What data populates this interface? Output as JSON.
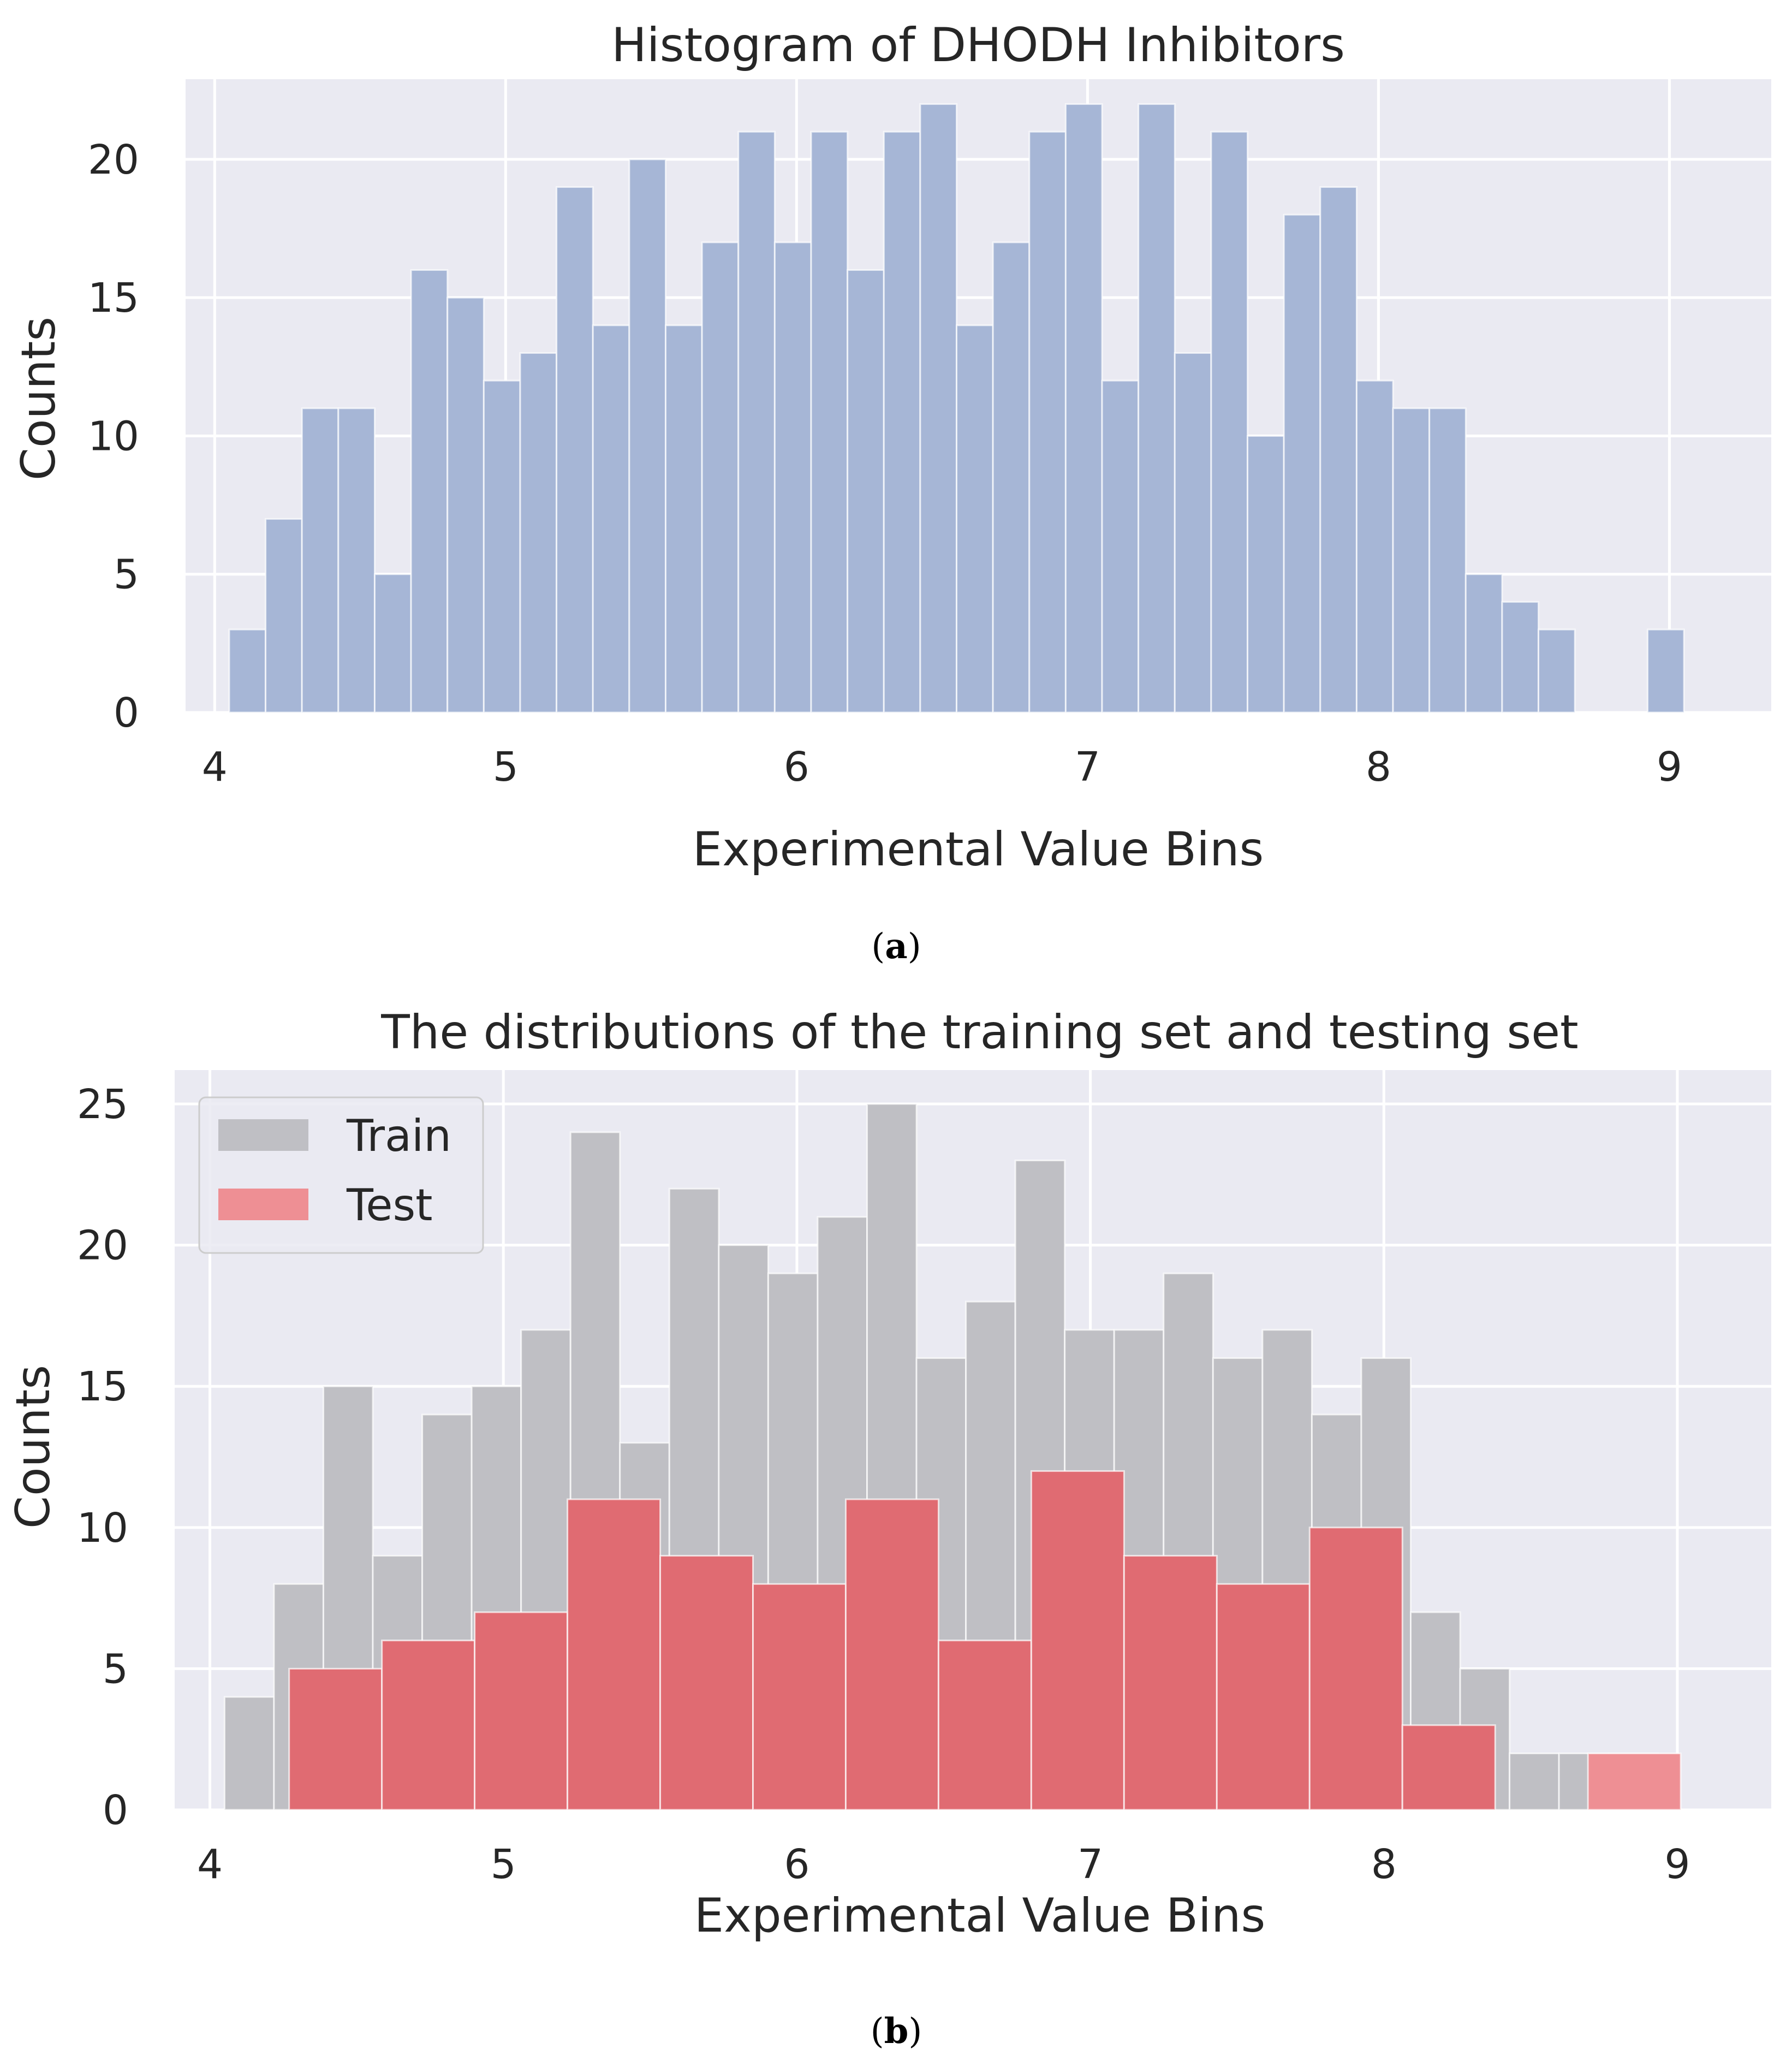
{
  "colors": {
    "background": "#eaeaf2",
    "grid": "#ffffff",
    "histogram": "#a6b6d6",
    "train": "#bfbfc4",
    "test": "#e06b72",
    "test_last": "#ee8f94",
    "text": "#262626"
  },
  "chart_data": [
    {
      "type": "bar",
      "panel": "a",
      "title": "Histogram of DHODH Inhibitors",
      "xlabel": "Experimental Value Bins",
      "ylabel": "Counts",
      "xlim": [
        3.9,
        9.35
      ],
      "ylim": [
        0,
        22.9
      ],
      "xticks": [
        4,
        5,
        6,
        7,
        8,
        9
      ],
      "yticks": [
        0,
        5,
        10,
        15,
        20
      ],
      "grid": true,
      "series": [
        {
          "name": "DHODH Inhibitors",
          "bin_start": 4.05,
          "bin_width": 0.125,
          "values": [
            3,
            7,
            11,
            11,
            5,
            16,
            15,
            12,
            13,
            19,
            14,
            20,
            14,
            17,
            21,
            17,
            21,
            16,
            21,
            22,
            14,
            17,
            21,
            22,
            12,
            22,
            13,
            21,
            10,
            18,
            19,
            12,
            11,
            11,
            5,
            4,
            3,
            0,
            0,
            3
          ]
        }
      ],
      "caption": "a"
    },
    {
      "type": "bar",
      "panel": "b",
      "title": "The distributions of the training set and testing set",
      "xlabel": "Experimental Value Bins",
      "ylabel": "Counts",
      "xlim": [
        3.88,
        9.32
      ],
      "ylim": [
        0,
        26.2
      ],
      "xticks": [
        4,
        5,
        6,
        7,
        8,
        9
      ],
      "yticks": [
        0,
        5,
        10,
        15,
        20,
        25
      ],
      "grid": true,
      "legend_position": "top-left",
      "series": [
        {
          "name": "Train",
          "bin_start": 4.05,
          "bin_width": 0.1684,
          "values": [
            4,
            8,
            15,
            9,
            14,
            15,
            17,
            24,
            13,
            22,
            20,
            19,
            21,
            25,
            16,
            18,
            23,
            17,
            17,
            19,
            16,
            17,
            14,
            16,
            7,
            5,
            2,
            2,
            2
          ]
        },
        {
          "name": "Test",
          "bin_start": 4.27,
          "bin_width": 0.3161,
          "values": [
            5,
            6,
            7,
            11,
            9,
            8,
            11,
            6,
            12,
            9,
            8,
            10,
            3,
            0,
            2
          ]
        }
      ],
      "caption": "b"
    }
  ]
}
